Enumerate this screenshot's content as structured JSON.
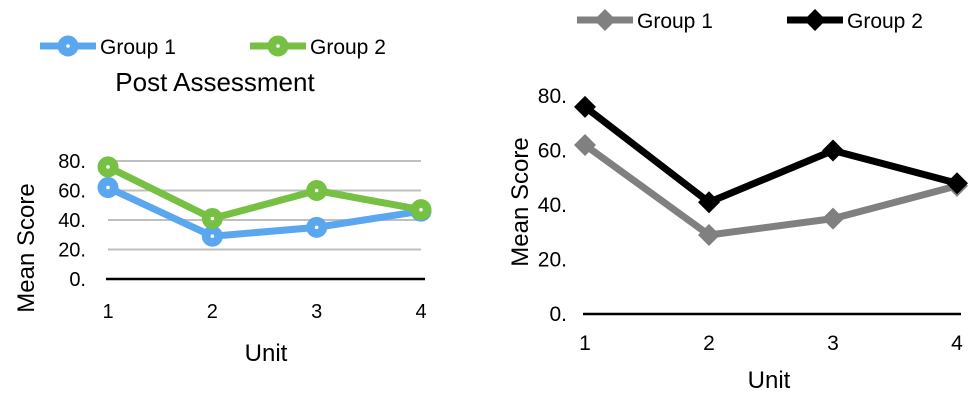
{
  "chart_data": [
    {
      "type": "line",
      "title": "Post Assessment",
      "xlabel": "Unit",
      "ylabel": "Mean Score",
      "categories": [
        "1",
        "2",
        "3",
        "4"
      ],
      "y_ticks": [
        "0.",
        "20.",
        "40.",
        "60.",
        "80."
      ],
      "ylim": [
        0,
        80
      ],
      "grid": true,
      "legend_position": "top",
      "series": [
        {
          "name": "Group 1",
          "values": [
            62,
            29,
            35,
            46
          ],
          "color": "#5AA7F0"
        },
        {
          "name": "Group 2",
          "values": [
            76,
            41,
            60,
            47
          ],
          "color": "#76C043"
        }
      ]
    },
    {
      "type": "line",
      "title": "",
      "xlabel": "Unit",
      "ylabel": "Mean Score",
      "categories": [
        "1",
        "2",
        "3",
        "4"
      ],
      "y_ticks": [
        "0.",
        "20.",
        "40.",
        "60.",
        "80."
      ],
      "ylim": [
        0,
        80
      ],
      "grid": false,
      "legend_position": "top",
      "series": [
        {
          "name": "Group 1",
          "values": [
            62,
            29,
            35,
            47
          ],
          "color": "#808080"
        },
        {
          "name": "Group 2",
          "values": [
            76,
            41,
            60,
            48
          ],
          "color": "#000000"
        }
      ]
    }
  ]
}
